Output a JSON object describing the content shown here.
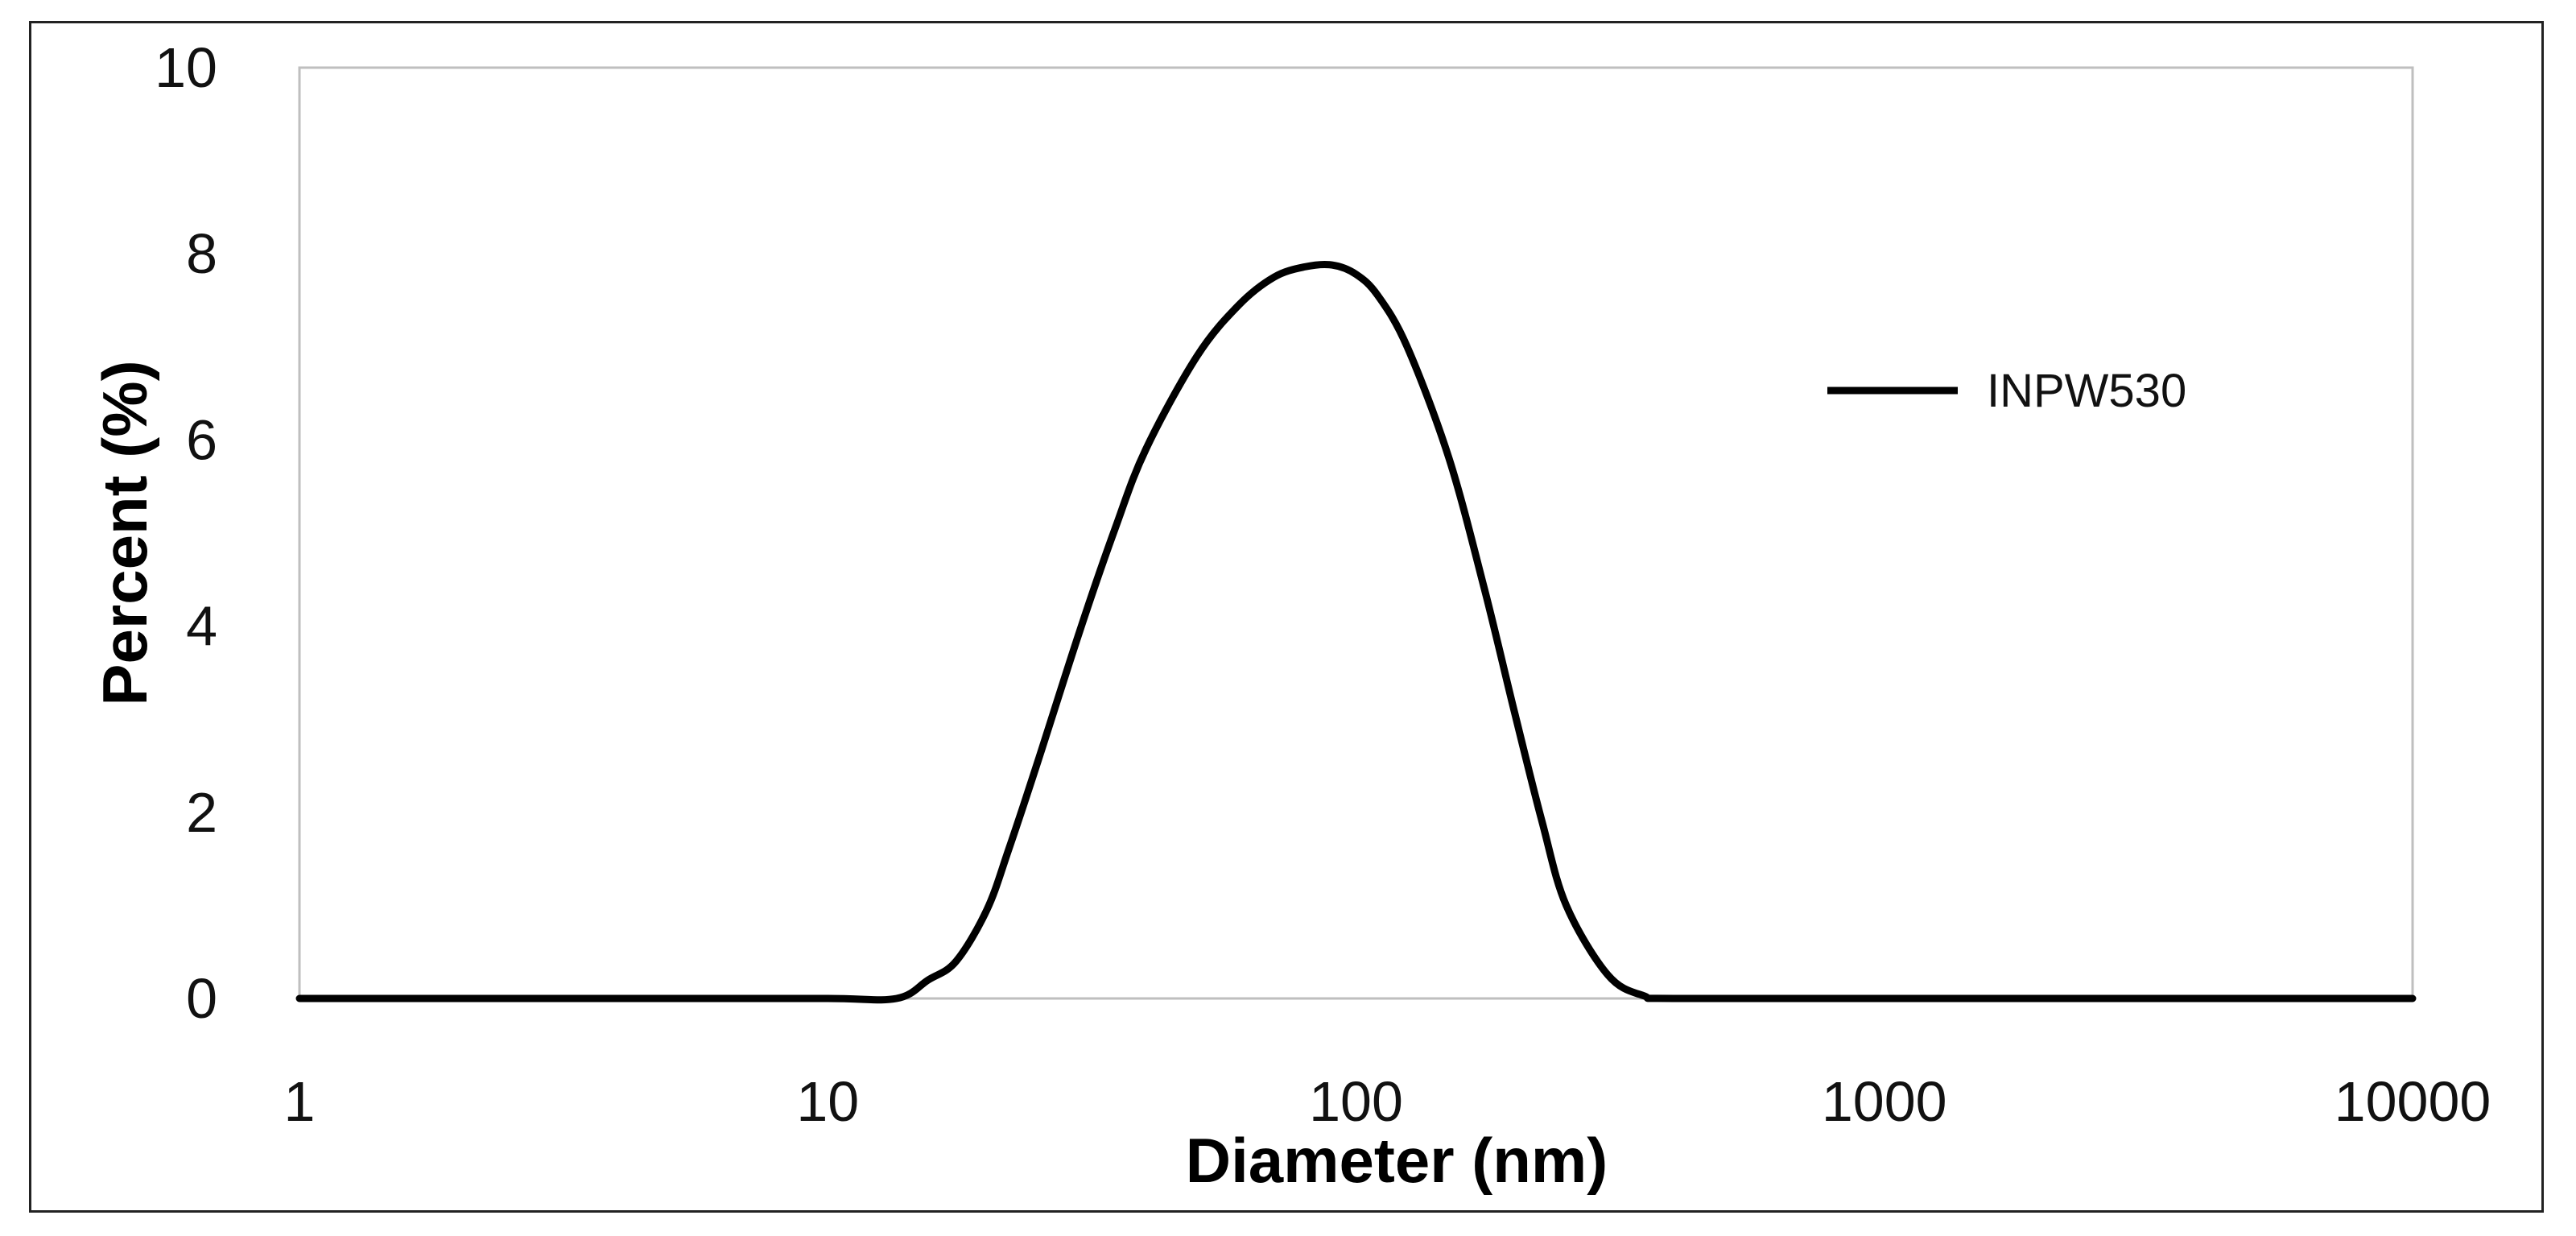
{
  "chart_data": {
    "type": "line",
    "title": "",
    "xlabel": "Diameter (nm)",
    "ylabel": "Percent (%)",
    "x_scale": "log",
    "xlim": [
      1,
      10000
    ],
    "ylim": [
      0,
      10
    ],
    "x_ticks": [
      "1",
      "10",
      "100",
      "1000",
      "10000"
    ],
    "y_ticks": [
      "0",
      "2",
      "4",
      "6",
      "8",
      "10"
    ],
    "grid": false,
    "legend_position": "right",
    "series": [
      {
        "name": "INPW530",
        "color": "#000000",
        "x": [
          1,
          5,
          10,
          13.5,
          15.5,
          17.5,
          20,
          22,
          25,
          30,
          35,
          40,
          50,
          60,
          70,
          80,
          90,
          100,
          110,
          125,
          150,
          175,
          200,
          225,
          250,
          300,
          350,
          400,
          1000,
          10000
        ],
        "y": [
          0,
          0,
          0,
          0,
          0.2,
          0.4,
          0.95,
          1.6,
          2.55,
          3.95,
          5.05,
          5.9,
          6.9,
          7.45,
          7.75,
          7.86,
          7.88,
          7.78,
          7.55,
          7.0,
          5.8,
          4.4,
          3.05,
          1.9,
          1.0,
          0.25,
          0.03,
          0,
          0,
          0
        ]
      }
    ]
  }
}
